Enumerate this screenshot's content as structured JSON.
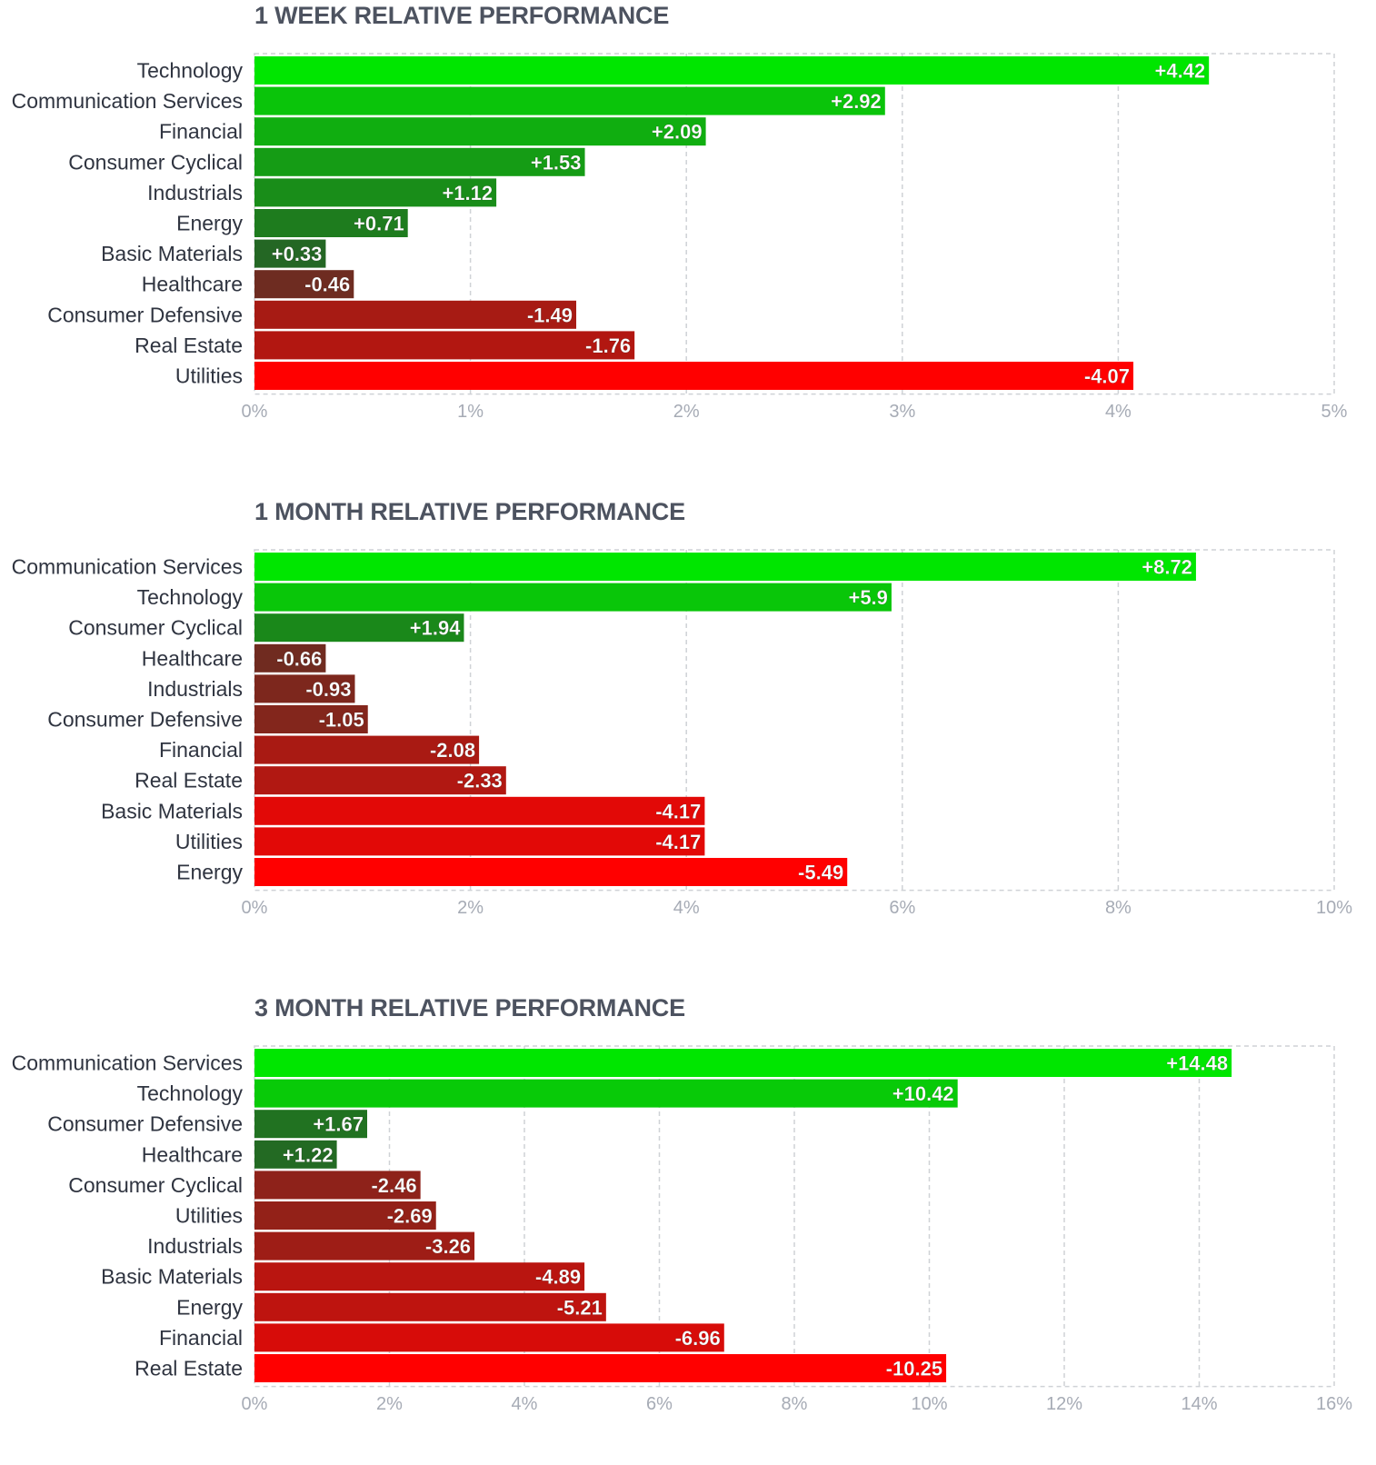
{
  "chart_data": [
    {
      "type": "bar",
      "orientation": "horizontal",
      "title": "1 WEEK RELATIVE PERFORMANCE",
      "categories": [
        "Technology",
        "Communication Services",
        "Financial",
        "Consumer Cyclical",
        "Industrials",
        "Energy",
        "Basic Materials",
        "Healthcare",
        "Consumer Defensive",
        "Real Estate",
        "Utilities"
      ],
      "values": [
        4.42,
        2.92,
        2.09,
        1.53,
        1.12,
        0.71,
        0.33,
        -0.46,
        -1.49,
        -1.76,
        -4.07
      ],
      "value_labels": [
        "+4.42",
        "+2.92",
        "+2.09",
        "+1.53",
        "+1.12",
        "+0.71",
        "+0.33",
        "-0.46",
        "-1.49",
        "-1.76",
        "-4.07"
      ],
      "xlim": [
        0,
        5
      ],
      "xticks": [
        "0%",
        "1%",
        "2%",
        "3%",
        "4%",
        "5%"
      ],
      "bar_length": "absolute value",
      "grid": true,
      "colors": {
        "positive": "#00e600",
        "negative": "#ff0000",
        "neutral": "#2f3f2f"
      }
    },
    {
      "type": "bar",
      "orientation": "horizontal",
      "title": "1 MONTH RELATIVE PERFORMANCE",
      "categories": [
        "Communication Services",
        "Technology",
        "Consumer Cyclical",
        "Healthcare",
        "Industrials",
        "Consumer Defensive",
        "Financial",
        "Real Estate",
        "Basic Materials",
        "Utilities",
        "Energy"
      ],
      "values": [
        8.72,
        5.9,
        1.94,
        -0.66,
        -0.93,
        -1.05,
        -2.08,
        -2.33,
        -4.17,
        -4.17,
        -5.49
      ],
      "value_labels": [
        "+8.72",
        "+5.9",
        "+1.94",
        "-0.66",
        "-0.93",
        "-1.05",
        "-2.08",
        "-2.33",
        "-4.17",
        "-4.17",
        "-5.49"
      ],
      "xlim": [
        0,
        10
      ],
      "xticks": [
        "0%",
        "2%",
        "4%",
        "6%",
        "8%",
        "10%"
      ],
      "bar_length": "absolute value",
      "grid": true,
      "colors": {
        "positive": "#00e600",
        "negative": "#ff0000",
        "neutral": "#2f3f2f"
      }
    },
    {
      "type": "bar",
      "orientation": "horizontal",
      "title": "3 MONTH RELATIVE PERFORMANCE",
      "categories": [
        "Communication Services",
        "Technology",
        "Consumer Defensive",
        "Healthcare",
        "Consumer Cyclical",
        "Utilities",
        "Industrials",
        "Basic Materials",
        "Energy",
        "Financial",
        "Real Estate"
      ],
      "values": [
        14.48,
        10.42,
        1.67,
        1.22,
        -2.46,
        -2.69,
        -3.26,
        -4.89,
        -5.21,
        -6.96,
        -10.25
      ],
      "value_labels": [
        "+14.48",
        "+10.42",
        "+1.67",
        "+1.22",
        "-2.46",
        "-2.69",
        "-3.26",
        "-4.89",
        "-5.21",
        "-6.96",
        "-10.25"
      ],
      "xlim": [
        0,
        16
      ],
      "xticks": [
        "0%",
        "2%",
        "4%",
        "6%",
        "8%",
        "10%",
        "12%",
        "14%",
        "16%"
      ],
      "bar_length": "absolute value",
      "grid": true,
      "colors": {
        "positive": "#00e600",
        "negative": "#ff0000",
        "neutral": "#2f3f2f"
      }
    }
  ]
}
